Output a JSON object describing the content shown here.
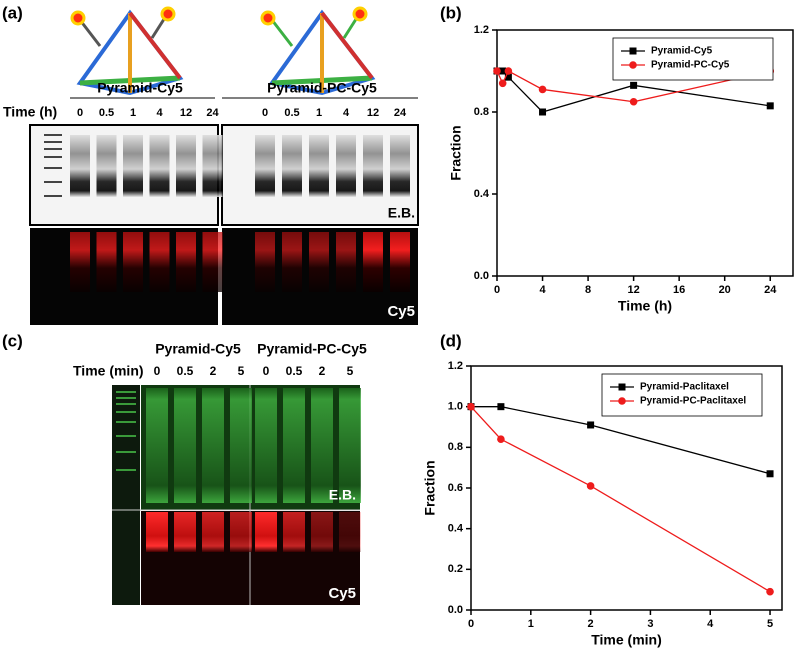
{
  "panel_a": {
    "label": "(a)",
    "groups": [
      "Pyramid-Cy5",
      "Pyramid-PC-Cy5"
    ],
    "time_label": "Time (h)",
    "lanes": [
      "0",
      "0.5",
      "1",
      "4",
      "12",
      "24"
    ],
    "stains": [
      "E.B.",
      "Cy5"
    ]
  },
  "panel_c": {
    "label": "(c)",
    "groups": [
      "Pyramid-Cy5",
      "Pyramid-PC-Cy5"
    ],
    "time_label": "Time (min)",
    "lanes": [
      "0",
      "0.5",
      "2",
      "5"
    ],
    "stains": [
      "E.B.",
      "Cy5"
    ]
  },
  "chart_data": [
    {
      "type": "line",
      "panel_label": "(b)",
      "x_label": "Time (h)",
      "y_label": "Fraction",
      "x": [
        0,
        0.5,
        1,
        4,
        12,
        24
      ],
      "xlim": [
        0,
        26
      ],
      "xticks": [
        0,
        4,
        8,
        12,
        16,
        20,
        24
      ],
      "ylim": [
        0,
        1.2
      ],
      "yticks": [
        {
          "value": 0,
          "label": "0.0"
        },
        0.4,
        0.8,
        1.2
      ],
      "legend": "upper right",
      "series": [
        {
          "name": "Pyramid-Cy5",
          "color": "#000000",
          "marker": "square",
          "values": [
            1.0,
            1.0,
            0.97,
            0.8,
            0.93,
            0.83
          ]
        },
        {
          "name": "Pyramid-PC-Cy5",
          "color": "#ee1c1c",
          "marker": "circle",
          "values": [
            1.0,
            0.94,
            1.0,
            0.91,
            0.85,
            1.0
          ]
        }
      ]
    },
    {
      "type": "line",
      "panel_label": "(d)",
      "x_label": "Time (min)",
      "y_label": "Fraction",
      "x": [
        0,
        0.5,
        2,
        5
      ],
      "xlim": [
        0,
        5.2
      ],
      "xticks": [
        0,
        1,
        2,
        3,
        4,
        5
      ],
      "ylim": [
        0,
        1.2
      ],
      "yticks": [
        {
          "value": 0,
          "label": "0.0"
        },
        0.2,
        0.4,
        0.6,
        0.8,
        {
          "value": 1,
          "label": "1.0"
        },
        1.2
      ],
      "legend": "upper right",
      "series": [
        {
          "name": "Pyramid-Paclitaxel",
          "color": "#000000",
          "marker": "square",
          "values": [
            1.0,
            1.0,
            0.91,
            0.67
          ]
        },
        {
          "name": "Pyramid-PC-Paclitaxel",
          "color": "#ee1c1c",
          "marker": "circle",
          "values": [
            1.0,
            0.84,
            0.61,
            0.09
          ]
        }
      ]
    }
  ]
}
